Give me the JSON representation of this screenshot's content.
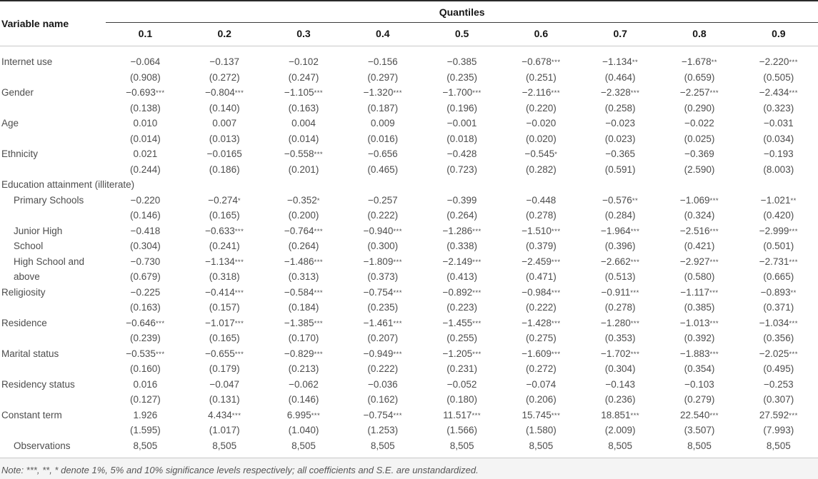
{
  "table": {
    "col_header_left": "Variable name",
    "group_header": "Quantiles",
    "quantiles": [
      "0.1",
      "0.2",
      "0.3",
      "0.4",
      "0.5",
      "0.6",
      "0.7",
      "0.8",
      "0.9"
    ],
    "rows": [
      {
        "id": "internet-use",
        "label": "Internet use",
        "coef": [
          "−0.064",
          "−0.137",
          "−0.102",
          "−0.156",
          "−0.385",
          "−0.678***",
          "−1.134**",
          "−1.678**",
          "−2.220***"
        ],
        "se": [
          "(0.908)",
          "(0.272)",
          "(0.247)",
          "(0.297)",
          "(0.235)",
          "(0.251)",
          "(0.464)",
          "(0.659)",
          "(0.505)"
        ]
      },
      {
        "id": "gender",
        "label": "Gender",
        "coef": [
          "−0.693***",
          "−0.804***",
          "−1.105***",
          "−1.320***",
          "−1.700***",
          "−2.116***",
          "−2.328***",
          "−2.257***",
          "−2.434***"
        ],
        "se": [
          "(0.138)",
          "(0.140)",
          "(0.163)",
          "(0.187)",
          "(0.196)",
          "(0.220)",
          "(0.258)",
          "(0.290)",
          "(0.323)"
        ]
      },
      {
        "id": "age",
        "label": "Age",
        "coef": [
          "0.010",
          "0.007",
          "0.004",
          "0.009",
          "−0.001",
          "−0.020",
          "−0.023",
          "−0.022",
          "−0.031"
        ],
        "se": [
          "(0.014)",
          "(0.013)",
          "(0.014)",
          "(0.016)",
          "(0.018)",
          "(0.020)",
          "(0.023)",
          "(0.025)",
          "(0.034)"
        ]
      },
      {
        "id": "ethnicity",
        "label": "Ethnicity",
        "coef": [
          "0.021",
          "−0.0165",
          "−0.558***",
          "−0.656",
          "−0.428",
          "−0.545*",
          "−0.365",
          "−0.369",
          "−0.193"
        ],
        "se": [
          "(0.244)",
          "(0.186)",
          "(0.201)",
          "(0.465)",
          "(0.723)",
          "(0.282)",
          "(0.591)",
          "(2.590)",
          "(8.003)"
        ]
      },
      {
        "id": "education-attainment",
        "type": "section",
        "label": "Education attainment (illiterate)"
      },
      {
        "id": "primary-schools",
        "label": "Primary Schools",
        "indent": true,
        "coef": [
          "−0.220",
          "−0.274*",
          "−0.352*",
          "−0.257",
          "−0.399",
          "−0.448",
          "−0.576**",
          "−1.069***",
          "−1.021**"
        ],
        "se": [
          "(0.146)",
          "(0.165)",
          "(0.200)",
          "(0.222)",
          "(0.264)",
          "(0.278)",
          "(0.284)",
          "(0.324)",
          "(0.420)"
        ]
      },
      {
        "id": "junior-high-school",
        "label": "Junior High",
        "label2": "School",
        "indent": true,
        "coef": [
          "−0.418",
          "−0.633***",
          "−0.764***",
          "−0.940***",
          "−1.286***",
          "−1.510***",
          "−1.964***",
          "−2.516***",
          "−2.999***"
        ],
        "se": [
          "(0.304)",
          "(0.241)",
          "(0.264)",
          "(0.300)",
          "(0.338)",
          "(0.379)",
          "(0.396)",
          "(0.421)",
          "(0.501)"
        ]
      },
      {
        "id": "high-school-and-above",
        "label": "High School and",
        "label2": "above",
        "indent": true,
        "coef": [
          "−0.730",
          "−1.134***",
          "−1.486***",
          "−1.809***",
          "−2.149***",
          "−2.459***",
          "−2.662***",
          "−2.927***",
          "−2.731***"
        ],
        "se": [
          "(0.679)",
          "(0.318)",
          "(0.313)",
          "(0.373)",
          "(0.413)",
          "(0.471)",
          "(0.513)",
          "(0.580)",
          "(0.665)"
        ]
      },
      {
        "id": "religiosity",
        "label": "Religiosity",
        "coef": [
          "−0.225",
          "−0.414***",
          "−0.584***",
          "−0.754***",
          "−0.892***",
          "−0.984***",
          "−0.911***",
          "−1.117***",
          "−0.893**"
        ],
        "se": [
          "(0.163)",
          "(0.157)",
          "(0.184)",
          "(0.235)",
          "(0.223)",
          "(0.222)",
          "(0.278)",
          "(0.385)",
          "(0.371)"
        ]
      },
      {
        "id": "residence",
        "label": "Residence",
        "coef": [
          "−0.646***",
          "−1.017***",
          "−1.385***",
          "−1.461***",
          "−1.455***",
          "−1.428***",
          "−1.280***",
          "−1.013***",
          "−1.034***"
        ],
        "se": [
          "(0.239)",
          "(0.165)",
          "(0.170)",
          "(0.207)",
          "(0.255)",
          "(0.275)",
          "(0.353)",
          "(0.392)",
          "(0.356)"
        ]
      },
      {
        "id": "marital-status",
        "label": "Marital status",
        "coef": [
          "−0.535***",
          "−0.655***",
          "−0.829***",
          "−0.949***",
          "−1.205***",
          "−1.609***",
          "−1.702***",
          "−1.883***",
          "−2.025***"
        ],
        "se": [
          "(0.160)",
          "(0.179)",
          "(0.213)",
          "(0.222)",
          "(0.231)",
          "(0.272)",
          "(0.304)",
          "(0.354)",
          "(0.495)"
        ]
      },
      {
        "id": "residency-status",
        "label": "Residency status",
        "coef": [
          "0.016",
          "−0.047",
          "−0.062",
          "−0.036",
          "−0.052",
          "−0.074",
          "−0.143",
          "−0.103",
          "−0.253"
        ],
        "se": [
          "(0.127)",
          "(0.131)",
          "(0.146)",
          "(0.162)",
          "(0.180)",
          "(0.206)",
          "(0.236)",
          "(0.279)",
          "(0.307)"
        ]
      },
      {
        "id": "constant-term",
        "label": "Constant term",
        "coef": [
          "1.926",
          "4.434***",
          "6.995***",
          "−0.754***",
          "11.517***",
          "15.745***",
          "18.851***",
          "22.540***",
          "27.592***"
        ],
        "se": [
          "(1.595)",
          "(1.017)",
          "(1.040)",
          "(1.253)",
          "(1.566)",
          "(1.580)",
          "(2.009)",
          "(3.507)",
          "(7.993)"
        ]
      },
      {
        "id": "observations",
        "type": "single",
        "label": "Observations",
        "indent": true,
        "coef": [
          "8,505",
          "8,505",
          "8,505",
          "8,505",
          "8,505",
          "8,505",
          "8,505",
          "8,505",
          "8,505"
        ]
      }
    ],
    "note": "Note: ***, **, * denote 1%, 5% and 10% significance levels respectively; all coefficients and S.E. are unstandardized."
  }
}
